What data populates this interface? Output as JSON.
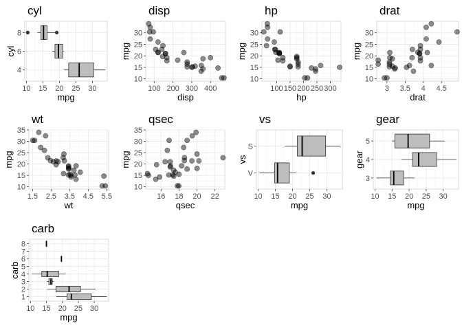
{
  "chart_data": [
    {
      "id": "cyl",
      "type": "boxplot",
      "orientation": "horizontal",
      "title": "cyl",
      "xlabel": "mpg",
      "ylabel": "cyl",
      "xlim": [
        9.5,
        34.5
      ],
      "xticks": [
        10,
        15,
        20,
        25,
        30
      ],
      "categories": [
        "4",
        "6",
        "8"
      ],
      "boxes": [
        {
          "cat": "4",
          "min": 21.4,
          "q1": 22.8,
          "median": 26.0,
          "q3": 30.4,
          "max": 33.9,
          "outliers": []
        },
        {
          "cat": "6",
          "min": 17.8,
          "q1": 18.65,
          "median": 19.7,
          "q3": 21.0,
          "max": 21.4,
          "outliers": []
        },
        {
          "cat": "8",
          "min": 13.3,
          "q1": 14.4,
          "median": 15.2,
          "q3": 16.25,
          "max": 18.7,
          "outliers": [
            10.4,
            10.4,
            19.2
          ]
        }
      ]
    },
    {
      "id": "disp",
      "type": "scatter",
      "title": "disp",
      "xlabel": "disp",
      "ylabel": "mpg",
      "xlim": [
        55,
        480
      ],
      "ylim": [
        9,
        35
      ],
      "xticks": [
        100,
        200,
        300,
        400
      ],
      "yticks": [
        10,
        15,
        20,
        25,
        30
      ],
      "points": [
        [
          71,
          33.9
        ],
        [
          75.7,
          30.4
        ],
        [
          78.7,
          32.4
        ],
        [
          79,
          27.3
        ],
        [
          95.1,
          30.4
        ],
        [
          108,
          22.8
        ],
        [
          120.1,
          21.5
        ],
        [
          120.3,
          26
        ],
        [
          121,
          21.4
        ],
        [
          140.8,
          22.8
        ],
        [
          145,
          19.7
        ],
        [
          146.7,
          24.4
        ],
        [
          160,
          21
        ],
        [
          160,
          21
        ],
        [
          167.6,
          19.2
        ],
        [
          167.6,
          17.8
        ],
        [
          225,
          18.1
        ],
        [
          258,
          21.4
        ],
        [
          275.8,
          16.4
        ],
        [
          275.8,
          17.3
        ],
        [
          275.8,
          15.2
        ],
        [
          301,
          15
        ],
        [
          304,
          15.2
        ],
        [
          318,
          15.5
        ],
        [
          350,
          13.3
        ],
        [
          351,
          15.8
        ],
        [
          360,
          18.7
        ],
        [
          360,
          14.3
        ],
        [
          400,
          19.2
        ],
        [
          440,
          14.7
        ],
        [
          460,
          10.4
        ],
        [
          472,
          10.4
        ]
      ]
    },
    {
      "id": "hp",
      "type": "scatter",
      "title": "hp",
      "xlabel": "hp",
      "ylabel": "mpg",
      "xlim": [
        45,
        340
      ],
      "ylim": [
        9,
        35
      ],
      "xticks": [
        100,
        150,
        200,
        250,
        300
      ],
      "yticks": [
        10,
        15,
        20,
        25,
        30
      ],
      "points": [
        [
          52,
          30.4
        ],
        [
          62,
          24.4
        ],
        [
          65,
          33.9
        ],
        [
          66,
          32.4
        ],
        [
          66,
          27.3
        ],
        [
          91,
          26
        ],
        [
          93,
          22.8
        ],
        [
          95,
          22.8
        ],
        [
          97,
          21.5
        ],
        [
          105,
          18.1
        ],
        [
          109,
          21.4
        ],
        [
          110,
          21
        ],
        [
          110,
          21
        ],
        [
          110,
          21.4
        ],
        [
          113,
          30.4
        ],
        [
          123,
          19.2
        ],
        [
          123,
          17.8
        ],
        [
          150,
          15.5
        ],
        [
          150,
          15.2
        ],
        [
          175,
          18.7
        ],
        [
          175,
          19.2
        ],
        [
          175,
          19.7
        ],
        [
          180,
          16.4
        ],
        [
          180,
          17.3
        ],
        [
          180,
          15.2
        ],
        [
          205,
          10.4
        ],
        [
          215,
          10.4
        ],
        [
          230,
          14.7
        ],
        [
          245,
          14.3
        ],
        [
          245,
          13.3
        ],
        [
          264,
          15.8
        ],
        [
          335,
          15
        ]
      ]
    },
    {
      "id": "drat",
      "type": "scatter",
      "title": "drat",
      "xlabel": "drat",
      "ylabel": "mpg",
      "xlim": [
        2.72,
        4.97
      ],
      "ylim": [
        9,
        35
      ],
      "xticks": [
        3.0,
        3.5,
        4.0,
        4.5
      ],
      "yticks": [
        10,
        15,
        20,
        25,
        30
      ],
      "points": [
        [
          2.76,
          18.1
        ],
        [
          2.76,
          16.4
        ],
        [
          2.93,
          10.4
        ],
        [
          3.0,
          10.4
        ],
        [
          3.07,
          17.3
        ],
        [
          3.07,
          15.2
        ],
        [
          3.07,
          16.4
        ],
        [
          3.08,
          21.4
        ],
        [
          3.08,
          19.2
        ],
        [
          3.15,
          18.7
        ],
        [
          3.15,
          15.5
        ],
        [
          3.21,
          14.3
        ],
        [
          3.23,
          14.7
        ],
        [
          3.54,
          15
        ],
        [
          3.62,
          15.8
        ],
        [
          3.69,
          19.2
        ],
        [
          3.7,
          22.8
        ],
        [
          3.73,
          13.3
        ],
        [
          3.85,
          21.5
        ],
        [
          3.9,
          21
        ],
        [
          3.9,
          21
        ],
        [
          3.92,
          22.8
        ],
        [
          3.92,
          17.8
        ],
        [
          3.92,
          24.4
        ],
        [
          3.92,
          19.2
        ],
        [
          4.08,
          32.4
        ],
        [
          4.08,
          27.3
        ],
        [
          4.11,
          21.4
        ],
        [
          4.22,
          33.9
        ],
        [
          4.22,
          15.8
        ],
        [
          4.43,
          26
        ],
        [
          4.93,
          30.4
        ]
      ]
    },
    {
      "id": "wt",
      "type": "scatter",
      "title": "wt",
      "xlabel": "wt",
      "ylabel": "mpg",
      "xlim": [
        1.3,
        5.6
      ],
      "ylim": [
        9,
        35
      ],
      "xticks": [
        1.5,
        2.5,
        3.5,
        4.5,
        5.5
      ],
      "yticks": [
        10,
        15,
        20,
        25,
        30,
        35
      ],
      "points": [
        [
          1.513,
          30.4
        ],
        [
          1.615,
          30.4
        ],
        [
          1.835,
          33.9
        ],
        [
          1.935,
          27.3
        ],
        [
          2.14,
          26
        ],
        [
          2.2,
          32.4
        ],
        [
          2.32,
          22.8
        ],
        [
          2.465,
          21.5
        ],
        [
          2.62,
          21
        ],
        [
          2.77,
          19.7
        ],
        [
          2.78,
          21.4
        ],
        [
          2.875,
          21
        ],
        [
          3.15,
          22.8
        ],
        [
          3.17,
          15.8
        ],
        [
          3.19,
          24.4
        ],
        [
          3.215,
          21.4
        ],
        [
          3.435,
          15.2
        ],
        [
          3.44,
          18.7
        ],
        [
          3.44,
          19.2
        ],
        [
          3.44,
          17.8
        ],
        [
          3.46,
          18.1
        ],
        [
          3.52,
          15.5
        ],
        [
          3.57,
          15
        ],
        [
          3.57,
          14.3
        ],
        [
          3.73,
          17.3
        ],
        [
          3.78,
          15.2
        ],
        [
          3.84,
          13.3
        ],
        [
          3.845,
          19.2
        ],
        [
          4.07,
          16.4
        ],
        [
          5.25,
          10.4
        ],
        [
          5.345,
          14.7
        ],
        [
          5.424,
          10.4
        ]
      ]
    },
    {
      "id": "qsec",
      "type": "scatter",
      "title": "qsec",
      "xlabel": "qsec",
      "ylabel": "mpg",
      "xlim": [
        14.3,
        23.1
      ],
      "ylim": [
        9,
        35
      ],
      "xticks": [
        16,
        18,
        20,
        22
      ],
      "yticks": [
        10,
        15,
        20,
        25,
        30,
        35
      ],
      "points": [
        [
          14.5,
          15.8
        ],
        [
          14.6,
          15
        ],
        [
          15.41,
          13.3
        ],
        [
          15.5,
          19.7
        ],
        [
          15.84,
          14.3
        ],
        [
          16.46,
          21
        ],
        [
          16.7,
          26
        ],
        [
          16.87,
          15.2
        ],
        [
          16.9,
          30.4
        ],
        [
          17.02,
          21
        ],
        [
          17.02,
          18.7
        ],
        [
          17.05,
          19.2
        ],
        [
          17.3,
          15.2
        ],
        [
          17.4,
          17.3
        ],
        [
          17.42,
          14.7
        ],
        [
          17.6,
          16.4
        ],
        [
          17.82,
          10.4
        ],
        [
          17.98,
          10.4
        ],
        [
          18,
          15.5
        ],
        [
          18.3,
          19.2
        ],
        [
          18.52,
          27.3
        ],
        [
          18.6,
          21.5
        ],
        [
          18.61,
          22.8
        ],
        [
          18.9,
          17.8
        ],
        [
          18.9,
          30.4
        ],
        [
          19.44,
          21.4
        ],
        [
          19.47,
          32.4
        ],
        [
          19.9,
          33.9
        ],
        [
          20,
          24.4
        ],
        [
          20.01,
          18.1
        ],
        [
          20.22,
          21.4
        ],
        [
          22.9,
          22.8
        ]
      ]
    },
    {
      "id": "vs",
      "type": "boxplot",
      "orientation": "horizontal",
      "title": "vs",
      "xlabel": "mpg",
      "ylabel": "vs",
      "xlim": [
        9.5,
        34.5
      ],
      "xticks": [
        10,
        15,
        20,
        25,
        30
      ],
      "categories": [
        "V",
        "S"
      ],
      "boxes": [
        {
          "cat": "V",
          "min": 10.4,
          "q1": 14.78,
          "median": 15.65,
          "q3": 19.08,
          "max": 21.0,
          "outliers": [
            26.0
          ]
        },
        {
          "cat": "S",
          "min": 17.8,
          "q1": 21.4,
          "median": 22.8,
          "q3": 29.63,
          "max": 33.9,
          "outliers": []
        }
      ]
    },
    {
      "id": "gear",
      "type": "boxplot",
      "orientation": "horizontal",
      "title": "gear",
      "xlabel": "mpg",
      "ylabel": "gear",
      "xlim": [
        9.5,
        34.5
      ],
      "xticks": [
        10,
        15,
        20,
        25,
        30
      ],
      "categories": [
        "3",
        "4",
        "5"
      ],
      "boxes": [
        {
          "cat": "3",
          "min": 10.4,
          "q1": 14.5,
          "median": 15.5,
          "q3": 18.4,
          "max": 21.5,
          "outliers": []
        },
        {
          "cat": "4",
          "min": 17.8,
          "q1": 21.0,
          "median": 22.8,
          "q3": 28.08,
          "max": 33.9,
          "outliers": []
        },
        {
          "cat": "5",
          "min": 15.0,
          "q1": 15.8,
          "median": 19.7,
          "q3": 26.0,
          "max": 30.4,
          "outliers": []
        }
      ]
    },
    {
      "id": "carb",
      "type": "boxplot",
      "orientation": "horizontal",
      "title": "carb",
      "xlabel": "mpg",
      "ylabel": "carb",
      "xlim": [
        9.5,
        34.5
      ],
      "xticks": [
        10,
        15,
        20,
        25,
        30
      ],
      "ylim": [
        0.4,
        8.6
      ],
      "categories": [
        "1",
        "2",
        "3",
        "4",
        "5",
        "6",
        "7",
        "8"
      ],
      "boxes": [
        {
          "cat": 1,
          "min": 18.1,
          "q1": 21.45,
          "median": 22.8,
          "q3": 29.1,
          "max": 33.9,
          "outliers": []
        },
        {
          "cat": 2,
          "min": 15.2,
          "q1": 18.0,
          "median": 22.1,
          "q3": 25.7,
          "max": 30.4,
          "outliers": []
        },
        {
          "cat": 3,
          "min": 15.2,
          "q1": 15.75,
          "median": 16.4,
          "q3": 16.85,
          "max": 17.3,
          "outliers": []
        },
        {
          "cat": 4,
          "min": 10.4,
          "q1": 13.55,
          "median": 15.25,
          "q3": 18.85,
          "max": 21.0,
          "outliers": []
        },
        {
          "cat": 6,
          "min": 19.7,
          "q1": 19.7,
          "median": 19.7,
          "q3": 19.7,
          "max": 19.7,
          "outliers": []
        },
        {
          "cat": 8,
          "min": 15.0,
          "q1": 15.0,
          "median": 15.0,
          "q3": 15.0,
          "max": 15.0,
          "outliers": []
        }
      ]
    }
  ]
}
